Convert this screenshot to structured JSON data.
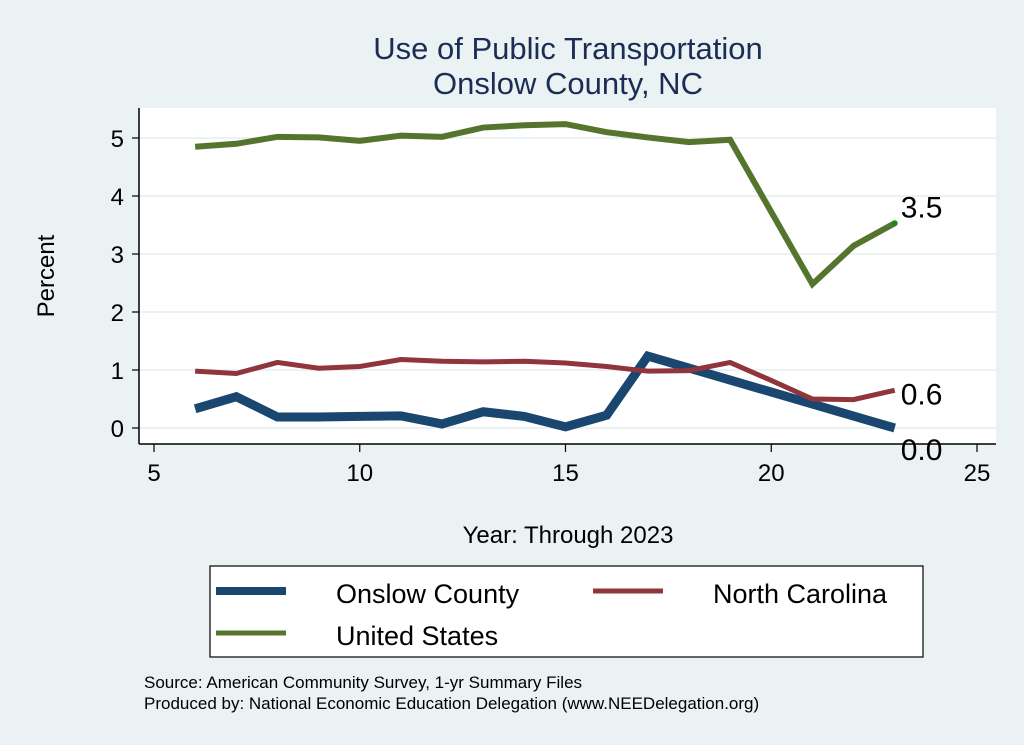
{
  "chart_data": {
    "type": "line",
    "title": "Use of Public Transportation",
    "subtitle": "Onslow County, NC",
    "xlabel": "Year: Through 2023",
    "ylabel": "Percent",
    "xlim": [
      5,
      25
    ],
    "ylim": [
      0,
      5.5
    ],
    "xticks": [
      5,
      10,
      15,
      20,
      25
    ],
    "yticks": [
      0,
      1,
      2,
      3,
      4,
      5
    ],
    "grid": "horizontal",
    "legend_position": "bottom",
    "x": [
      6,
      7,
      8,
      9,
      10,
      11,
      12,
      13,
      14,
      15,
      16,
      17,
      18,
      19,
      20,
      21,
      22,
      23
    ],
    "series": [
      {
        "name": "Onslow County",
        "color": "#1a476f",
        "values": [
          0.33,
          0.54,
          0.19,
          0.19,
          0.2,
          0.21,
          0.07,
          0.28,
          0.2,
          0.02,
          0.22,
          1.24,
          null,
          null,
          null,
          null,
          null,
          0.0
        ],
        "end_label": "0.0"
      },
      {
        "name": "North Carolina",
        "color": "#90353b",
        "values": [
          0.98,
          0.94,
          1.13,
          1.03,
          1.06,
          1.18,
          1.15,
          1.14,
          1.15,
          1.12,
          1.06,
          0.98,
          0.99,
          1.13,
          0.82,
          0.5,
          0.49,
          0.65
        ],
        "end_label": "0.6"
      },
      {
        "name": "United States",
        "color": "#55752f",
        "values": [
          4.85,
          4.9,
          5.02,
          5.01,
          4.95,
          5.04,
          5.02,
          5.18,
          5.22,
          5.24,
          5.1,
          5.01,
          4.93,
          4.97,
          null,
          2.48,
          3.14,
          3.53
        ],
        "end_label": "3.5"
      }
    ],
    "notes": [
      "Source: American Community Survey, 1-yr Summary Files",
      "Produced by: National Economic Education Delegation (www.NEEDelegation.org)"
    ]
  }
}
